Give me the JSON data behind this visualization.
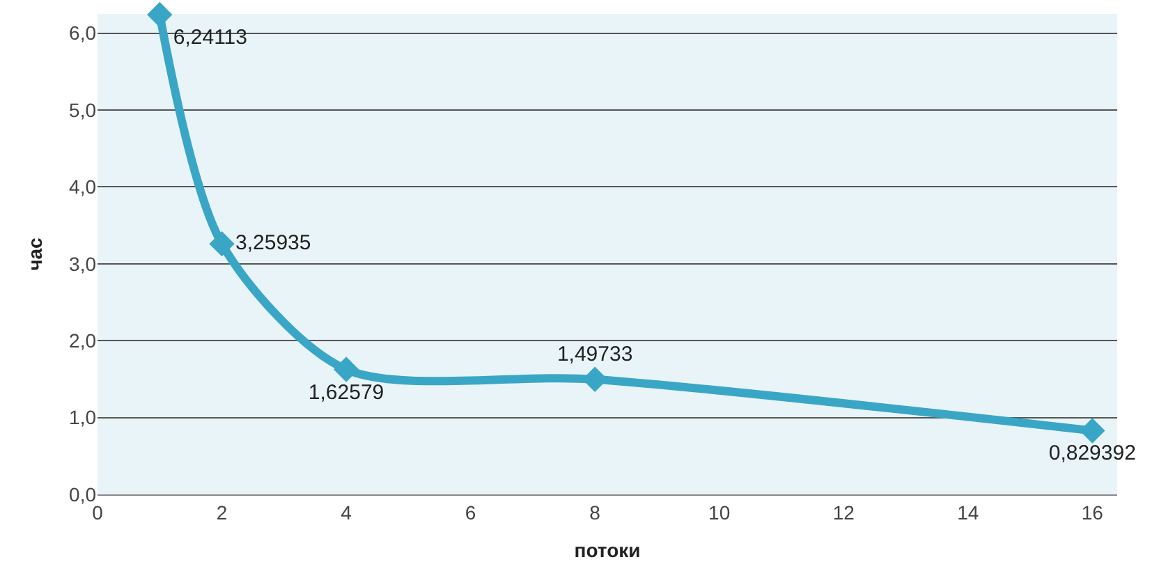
{
  "chart_data": {
    "type": "line",
    "xlabel": "потоки",
    "ylabel": "час",
    "x": [
      1,
      2,
      4,
      8,
      16
    ],
    "series": [
      {
        "color": "#3aa6c6",
        "values": [
          6.24113,
          3.25935,
          1.62579,
          1.49733,
          0.829392
        ],
        "value_labels": [
          "6,24113",
          "3,25935",
          "1,62579",
          "1,49733",
          "0,829392"
        ]
      }
    ],
    "xlim": [
      0,
      16.4
    ],
    "xticks": [
      0,
      2,
      4,
      6,
      8,
      10,
      12,
      14,
      16
    ],
    "ylim": [
      0,
      6.25
    ],
    "yticks": [
      {
        "value": 0,
        "label": "0,0"
      },
      {
        "value": 1,
        "label": "1,0"
      },
      {
        "value": 2,
        "label": "2,0"
      },
      {
        "value": 3,
        "label": "3,0"
      },
      {
        "value": 4,
        "label": "4,0"
      },
      {
        "value": 5,
        "label": "5,0"
      },
      {
        "value": 6,
        "label": "6,0"
      }
    ],
    "grid": "y",
    "legend": false,
    "marker": "diamond",
    "line_style": "solid"
  }
}
